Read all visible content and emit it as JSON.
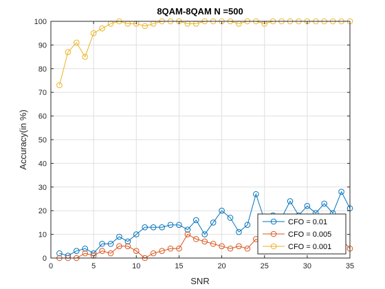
{
  "chart_data": {
    "type": "line",
    "title": "8QAM-8QAM N =500",
    "xlabel": "SNR",
    "ylabel": "Accuracy(in %)",
    "xlim": [
      0,
      35
    ],
    "ylim": [
      0,
      100
    ],
    "xticks": [
      0,
      5,
      10,
      15,
      20,
      25,
      30,
      35
    ],
    "yticks": [
      0,
      10,
      20,
      30,
      40,
      50,
      60,
      70,
      80,
      90,
      100
    ],
    "grid": true,
    "legend_position": "bottom-right",
    "x": [
      1,
      2,
      3,
      4,
      5,
      6,
      7,
      8,
      9,
      10,
      11,
      12,
      13,
      14,
      15,
      16,
      17,
      18,
      19,
      20,
      21,
      22,
      23,
      24,
      25,
      26,
      27,
      28,
      29,
      30,
      31,
      32,
      33,
      34,
      35
    ],
    "series": [
      {
        "name": "CFO = 0.01",
        "color": "#0072BD",
        "values": [
          2,
          1,
          3,
          4,
          2,
          6,
          6,
          9,
          7,
          10,
          13,
          13,
          13,
          14,
          14,
          12,
          16,
          10,
          15,
          20,
          17,
          11,
          14,
          27,
          16,
          18,
          17,
          24,
          18,
          22,
          19,
          23,
          19,
          28,
          21
        ]
      },
      {
        "name": "CFO = 0.005",
        "color": "#D95319",
        "values": [
          0,
          0,
          0,
          2,
          1,
          3,
          2,
          5,
          5,
          3,
          0,
          2,
          3,
          4,
          4,
          10,
          8,
          7,
          6,
          5,
          4,
          5,
          4,
          8,
          6,
          5,
          6,
          4,
          3,
          5,
          4,
          5,
          6,
          8,
          4
        ]
      },
      {
        "name": "CFO = 0.001",
        "color": "#EDB120",
        "values": [
          73,
          87,
          91,
          85,
          95,
          97,
          99,
          100,
          99,
          99,
          98,
          99,
          100,
          100,
          100,
          99,
          99,
          100,
          100,
          100,
          100,
          99,
          100,
          100,
          99,
          100,
          100,
          100,
          100,
          100,
          100,
          100,
          100,
          100,
          100
        ]
      }
    ]
  }
}
